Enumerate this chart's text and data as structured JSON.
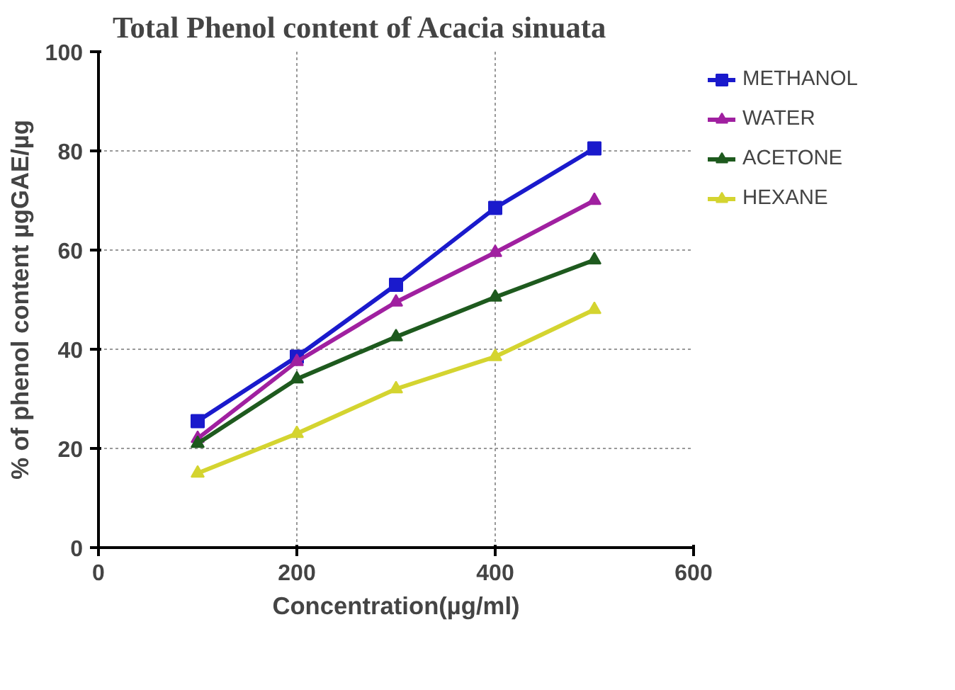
{
  "chart_data": {
    "type": "line",
    "title": "Total Phenol content of  Acacia sinuata",
    "xlabel": "Concentration(µg/ml)",
    "ylabel": "% of phenol content µgGAE/µg",
    "x": [
      100,
      200,
      300,
      400,
      500
    ],
    "series": [
      {
        "name": "METHANOL",
        "color": "#1a1acc",
        "marker": "square",
        "values": [
          25.5,
          38.5,
          53,
          68.5,
          80.5
        ]
      },
      {
        "name": "WATER",
        "color": "#a020a0",
        "marker": "triangle",
        "values": [
          22,
          37.5,
          49.5,
          59.5,
          70
        ]
      },
      {
        "name": "ACETONE",
        "color": "#1e5a1e",
        "marker": "triangle",
        "values": [
          21,
          34,
          42.5,
          50.5,
          58
        ]
      },
      {
        "name": "HEXANE",
        "color": "#d4d430",
        "marker": "triangle",
        "values": [
          15,
          23,
          32,
          38.5,
          48
        ]
      }
    ],
    "xlim": [
      0,
      600
    ],
    "xticks": [
      0,
      200,
      400,
      600
    ],
    "ylim": [
      0,
      100
    ],
    "yticks": [
      0,
      20,
      40,
      60,
      80,
      100
    ],
    "grid": true,
    "legend": "right",
    "line_style": "solid"
  }
}
